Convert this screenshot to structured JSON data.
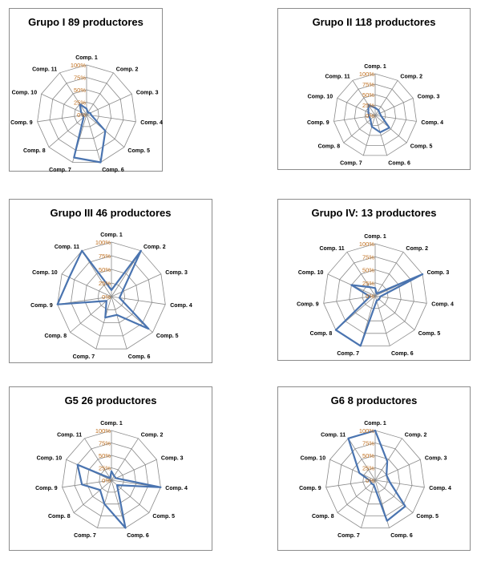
{
  "chart_data": [
    {
      "type": "radar",
      "title": "Grupo I 89 productores",
      "categories": [
        "Comp. 1",
        "Comp. 2",
        "Comp. 3",
        "Comp. 4",
        "Comp. 5",
        "Comp. 6",
        "Comp. 7",
        "Comp. 8",
        "Comp. 9",
        "Comp. 10",
        "Comp. 11"
      ],
      "tick_labels": [
        "0%",
        "25%",
        "50%",
        "75%",
        "100%"
      ],
      "ylim": [
        0,
        100
      ],
      "values": [
        12,
        5,
        8,
        10,
        50,
        100,
        90,
        8,
        8,
        12,
        25
      ],
      "line_color": "#4a74b0"
    },
    {
      "type": "radar",
      "title": "Grupo II 118 productores",
      "categories": [
        "Comp. 1",
        "Comp. 2",
        "Comp. 3",
        "Comp. 4",
        "Comp. 5",
        "Comp. 6",
        "Comp. 7",
        "Comp. 8",
        "Comp. 9",
        "Comp. 10",
        "Comp. 11"
      ],
      "tick_labels": [
        "0%",
        "25%",
        "50%",
        "75%",
        "100%"
      ],
      "ylim": [
        0,
        100
      ],
      "values": [
        18,
        15,
        12,
        15,
        45,
        42,
        28,
        15,
        15,
        18,
        30
      ],
      "line_color": "#4a74b0"
    },
    {
      "type": "radar",
      "title": "Grupo III 46 productores",
      "categories": [
        "Comp. 1",
        "Comp. 2",
        "Comp. 3",
        "Comp. 4",
        "Comp. 5",
        "Comp. 6",
        "Comp. 7",
        "Comp. 8",
        "Comp. 9",
        "Comp. 10",
        "Comp. 11"
      ],
      "tick_labels": [
        "0%",
        "25%",
        "50%",
        "75%",
        "100%"
      ],
      "ylim": [
        0,
        100
      ],
      "values": [
        12,
        100,
        22,
        15,
        90,
        35,
        40,
        12,
        100,
        85,
        100
      ],
      "line_color": "#4a74b0"
    },
    {
      "type": "radar",
      "title": "Grupo IV: 13 productores",
      "categories": [
        "Comp. 1",
        "Comp. 2",
        "Comp. 3",
        "Comp. 4",
        "Comp. 5",
        "Comp. 6",
        "Comp. 7",
        "Comp. 8",
        "Comp. 9",
        "Comp. 10",
        "Comp. 11"
      ],
      "tick_labels": [
        "0%",
        "25%",
        "50%",
        "75%",
        "100%"
      ],
      "ylim": [
        0,
        100
      ],
      "values": [
        15,
        5,
        100,
        10,
        10,
        10,
        100,
        100,
        10,
        50,
        20
      ],
      "line_color": "#4a74b0"
    },
    {
      "type": "radar",
      "title": "G5 26 productores",
      "categories": [
        "Comp. 1",
        "Comp. 2",
        "Comp. 3",
        "Comp. 4",
        "Comp. 5",
        "Comp. 6",
        "Comp. 7",
        "Comp. 8",
        "Comp. 9",
        "Comp. 10",
        "Comp. 11"
      ],
      "tick_labels": [
        "0%",
        "25%",
        "50%",
        "75%",
        "100%"
      ],
      "ylim": [
        0,
        100
      ],
      "values": [
        18,
        10,
        10,
        100,
        15,
        100,
        50,
        30,
        60,
        75,
        5
      ],
      "line_color": "#4a74b0"
    },
    {
      "type": "radar",
      "title": "G6 8 productores",
      "categories": [
        "Comp. 1",
        "Comp. 2",
        "Comp. 3",
        "Comp. 4",
        "Comp. 5",
        "Comp. 6",
        "Comp. 7",
        "Comp. 8",
        "Comp. 9",
        "Comp. 10",
        "Comp. 11"
      ],
      "tick_labels": [
        "0%",
        "25%",
        "50%",
        "75%",
        "100%"
      ],
      "ylim": [
        0,
        100
      ],
      "values": [
        100,
        45,
        25,
        30,
        80,
        85,
        10,
        10,
        10,
        35,
        100
      ],
      "line_color": "#4a74b0"
    }
  ]
}
